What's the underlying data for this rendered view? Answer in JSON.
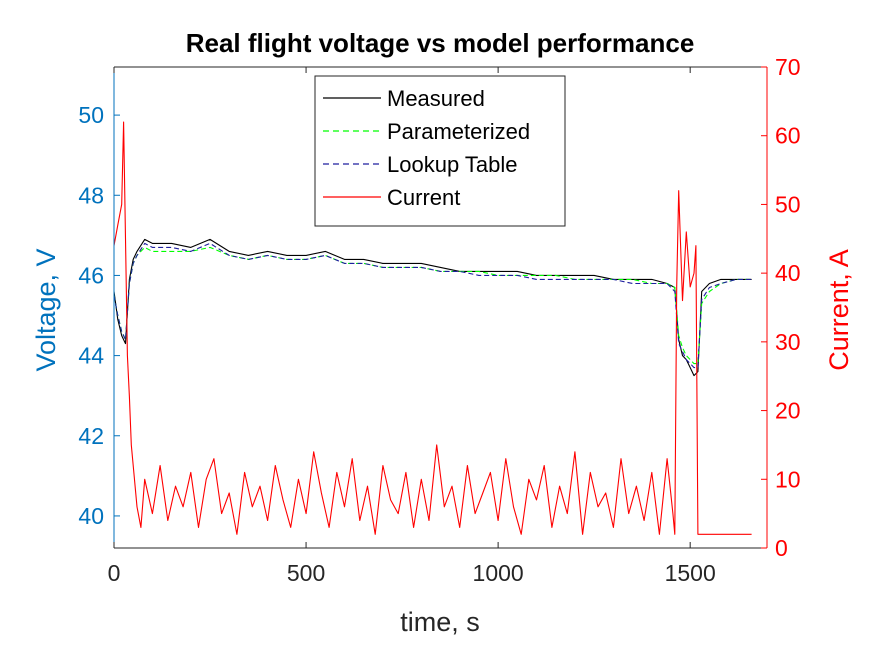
{
  "chart_data": {
    "type": "line",
    "title": "Real flight voltage vs model performance",
    "xlabel": "time, s",
    "ylabel_left": "Voltage, V",
    "ylabel_right": "Current, A",
    "xlim": [
      0,
      1700
    ],
    "ylim_left": [
      39.2,
      51.2
    ],
    "ylim_right": [
      0,
      70
    ],
    "x_ticks": [
      "0",
      "500",
      "1000",
      "1500"
    ],
    "x_tick_values": [
      0,
      500,
      1000,
      1500
    ],
    "y_left_ticks": [
      "40",
      "42",
      "44",
      "46",
      "48",
      "50"
    ],
    "y_left_tick_values": [
      40,
      42,
      44,
      46,
      48,
      50
    ],
    "y_right_ticks": [
      "0",
      "10",
      "20",
      "30",
      "40",
      "50",
      "60",
      "70"
    ],
    "y_right_tick_values": [
      0,
      10,
      20,
      30,
      40,
      50,
      60,
      70
    ],
    "grid": false,
    "legend_position": "top-center",
    "colors": {
      "left_axis": "#0072BD",
      "right_axis": "#FF0000",
      "frame": "#262626"
    },
    "series": [
      {
        "name": "Measured",
        "axis": "left",
        "color": "#000000",
        "dash": "solid",
        "x": [
          0,
          10,
          20,
          30,
          40,
          50,
          60,
          80,
          100,
          150,
          200,
          250,
          300,
          350,
          400,
          450,
          500,
          550,
          600,
          650,
          700,
          750,
          800,
          850,
          900,
          950,
          1000,
          1050,
          1100,
          1150,
          1200,
          1250,
          1300,
          1350,
          1400,
          1440,
          1460,
          1470,
          1480,
          1490,
          1500,
          1510,
          1520,
          1530,
          1550,
          1580,
          1620,
          1660
        ],
        "y": [
          45.6,
          44.9,
          44.5,
          44.3,
          45.9,
          46.4,
          46.6,
          46.9,
          46.8,
          46.8,
          46.7,
          46.9,
          46.6,
          46.5,
          46.6,
          46.5,
          46.5,
          46.6,
          46.4,
          46.4,
          46.3,
          46.3,
          46.3,
          46.2,
          46.1,
          46.1,
          46.1,
          46.1,
          46.0,
          46.0,
          46.0,
          46.0,
          45.9,
          45.9,
          45.9,
          45.8,
          45.7,
          44.4,
          44.0,
          43.9,
          43.7,
          43.5,
          43.6,
          45.6,
          45.8,
          45.9,
          45.9,
          45.9
        ]
      },
      {
        "name": "Parameterized",
        "axis": "left",
        "color": "#00FF00",
        "dash": "dashed",
        "x": [
          0,
          10,
          20,
          30,
          40,
          50,
          60,
          80,
          100,
          150,
          200,
          250,
          300,
          350,
          400,
          450,
          500,
          550,
          600,
          650,
          700,
          750,
          800,
          850,
          900,
          950,
          1000,
          1050,
          1100,
          1150,
          1200,
          1250,
          1300,
          1350,
          1400,
          1440,
          1460,
          1470,
          1480,
          1490,
          1500,
          1510,
          1520,
          1530,
          1550,
          1580,
          1620,
          1660
        ],
        "y": [
          45.5,
          45.0,
          44.6,
          44.4,
          45.8,
          46.3,
          46.5,
          46.7,
          46.6,
          46.6,
          46.6,
          46.7,
          46.5,
          46.4,
          46.5,
          46.4,
          46.4,
          46.5,
          46.3,
          46.3,
          46.2,
          46.2,
          46.2,
          46.1,
          46.1,
          46.1,
          46.0,
          46.0,
          46.0,
          46.0,
          45.9,
          45.9,
          45.9,
          45.9,
          45.8,
          45.8,
          45.7,
          44.5,
          44.2,
          44.0,
          43.9,
          43.8,
          43.8,
          45.3,
          45.6,
          45.8,
          45.9,
          45.9
        ]
      },
      {
        "name": "Lookup Table",
        "axis": "left",
        "color": "#1F1F9F",
        "dash": "dashed",
        "x": [
          0,
          10,
          20,
          30,
          40,
          50,
          60,
          80,
          100,
          150,
          200,
          250,
          300,
          350,
          400,
          450,
          500,
          550,
          600,
          650,
          700,
          750,
          800,
          850,
          900,
          950,
          1000,
          1050,
          1100,
          1150,
          1200,
          1250,
          1300,
          1350,
          1400,
          1440,
          1460,
          1470,
          1480,
          1490,
          1500,
          1510,
          1520,
          1530,
          1550,
          1580,
          1620,
          1660
        ],
        "y": [
          45.5,
          45.0,
          44.6,
          44.4,
          45.8,
          46.3,
          46.5,
          46.8,
          46.7,
          46.7,
          46.6,
          46.8,
          46.5,
          46.4,
          46.5,
          46.4,
          46.4,
          46.5,
          46.3,
          46.3,
          46.2,
          46.2,
          46.2,
          46.1,
          46.1,
          46.0,
          46.0,
          46.0,
          45.9,
          45.9,
          45.9,
          45.9,
          45.9,
          45.8,
          45.8,
          45.8,
          45.6,
          44.3,
          44.1,
          43.9,
          43.8,
          43.7,
          43.7,
          45.4,
          45.7,
          45.8,
          45.9,
          45.9
        ]
      },
      {
        "name": "Current",
        "axis": "right",
        "color": "#FF0000",
        "dash": "solid",
        "x": [
          0,
          10,
          20,
          25,
          30,
          35,
          40,
          45,
          50,
          60,
          70,
          80,
          100,
          120,
          140,
          160,
          180,
          200,
          220,
          240,
          260,
          280,
          300,
          320,
          340,
          360,
          380,
          400,
          420,
          440,
          460,
          480,
          500,
          520,
          540,
          560,
          580,
          600,
          620,
          640,
          660,
          680,
          700,
          720,
          740,
          760,
          780,
          800,
          820,
          840,
          860,
          880,
          900,
          920,
          940,
          960,
          980,
          1000,
          1020,
          1040,
          1060,
          1080,
          1100,
          1120,
          1140,
          1160,
          1180,
          1200,
          1220,
          1240,
          1260,
          1280,
          1300,
          1320,
          1340,
          1360,
          1380,
          1400,
          1420,
          1440,
          1455,
          1460,
          1465,
          1470,
          1480,
          1490,
          1500,
          1510,
          1515,
          1520,
          1530,
          1550,
          1600,
          1660
        ],
        "y": [
          44,
          47,
          50,
          62,
          45,
          28,
          22,
          15,
          12,
          6,
          3,
          10,
          5,
          12,
          4,
          9,
          6,
          11,
          3,
          10,
          13,
          5,
          8,
          2,
          11,
          6,
          9,
          4,
          12,
          7,
          3,
          10,
          5,
          14,
          8,
          3,
          11,
          6,
          13,
          4,
          9,
          2,
          12,
          7,
          5,
          11,
          3,
          10,
          4,
          15,
          6,
          9,
          3,
          12,
          5,
          8,
          11,
          4,
          13,
          6,
          2,
          10,
          7,
          12,
          3,
          9,
          5,
          14,
          2,
          11,
          6,
          8,
          3,
          13,
          5,
          9,
          4,
          11,
          2,
          13,
          5,
          2,
          38,
          52,
          36,
          46,
          38,
          40,
          44,
          2,
          2,
          2,
          2,
          2
        ]
      }
    ]
  }
}
